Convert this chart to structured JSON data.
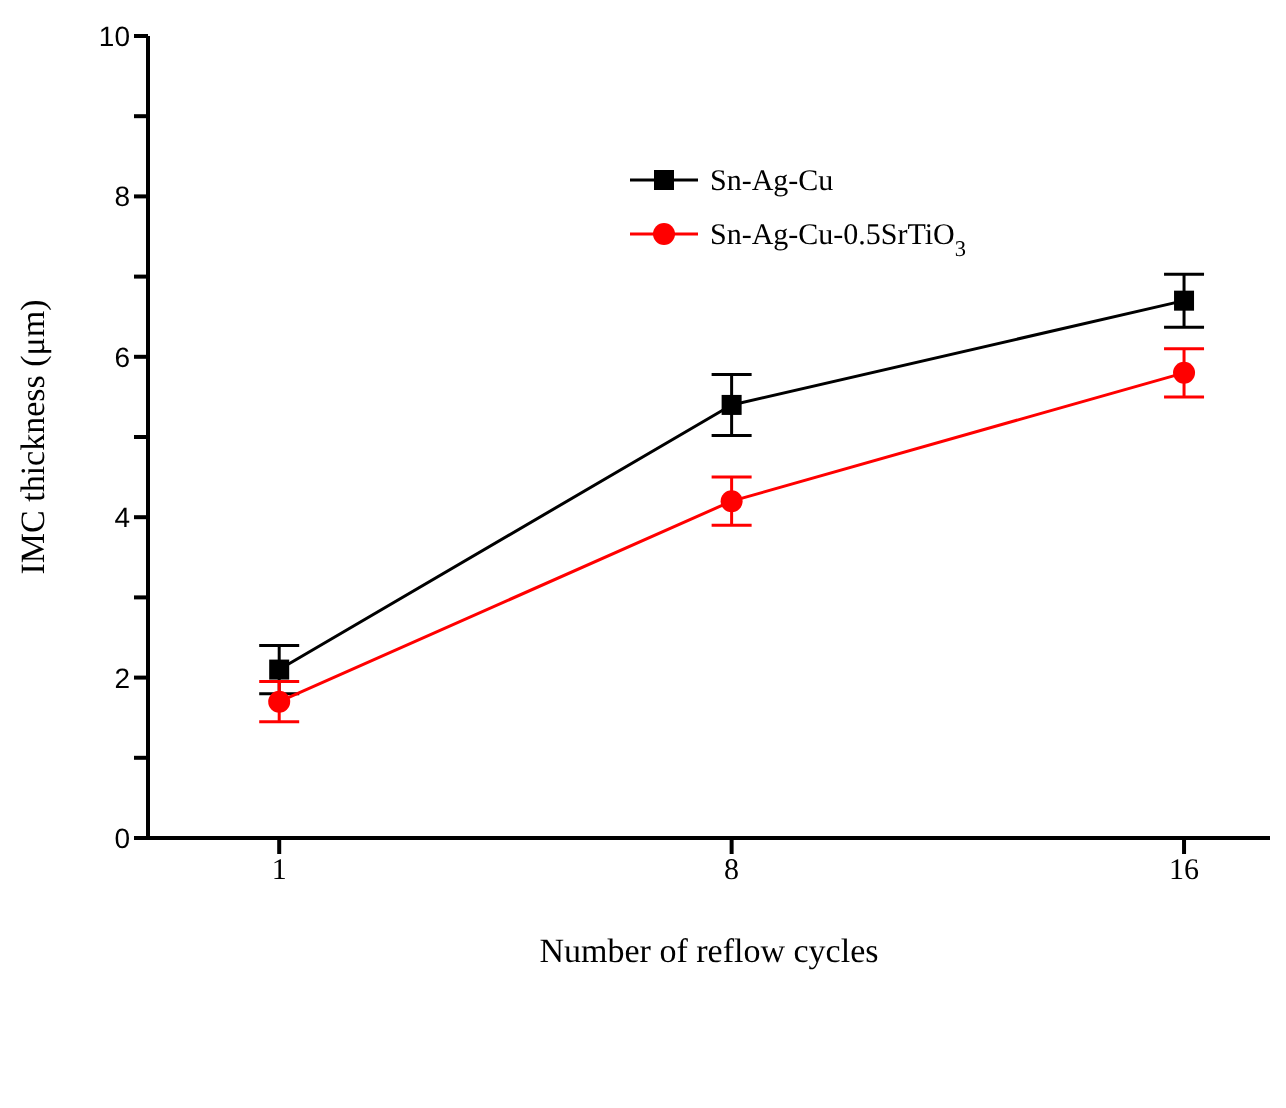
{
  "chart_data": {
    "type": "line",
    "xlabel": "Number of reflow cycles",
    "ylabel": "IMC thickness (μm)",
    "categories": [
      "1",
      "8",
      "16"
    ],
    "ylim": [
      0,
      10
    ],
    "yticks": [
      0,
      {
        "value": 1,
        "label": null
      },
      2,
      {
        "value": 3,
        "label": null
      },
      4,
      {
        "value": 5,
        "label": null
      },
      6,
      {
        "value": 7,
        "label": null
      },
      8,
      {
        "value": 9,
        "label": null
      },
      10
    ],
    "grid": false,
    "legend": "top",
    "line_style": "solid",
    "series": [
      {
        "name": "Sn-Ag-Cu",
        "color": "#000000",
        "marker": "square",
        "values": [
          2.1,
          5.4,
          6.7
        ],
        "errors": [
          0.3,
          0.38,
          0.33
        ]
      },
      {
        "name": "Sn-Ag-Cu-0.5SrTiO$_{3}$",
        "color": "#ff0000",
        "marker": "circle",
        "values": [
          1.7,
          4.2,
          5.8
        ],
        "errors": [
          0.25,
          0.3,
          0.3
        ]
      }
    ]
  }
}
